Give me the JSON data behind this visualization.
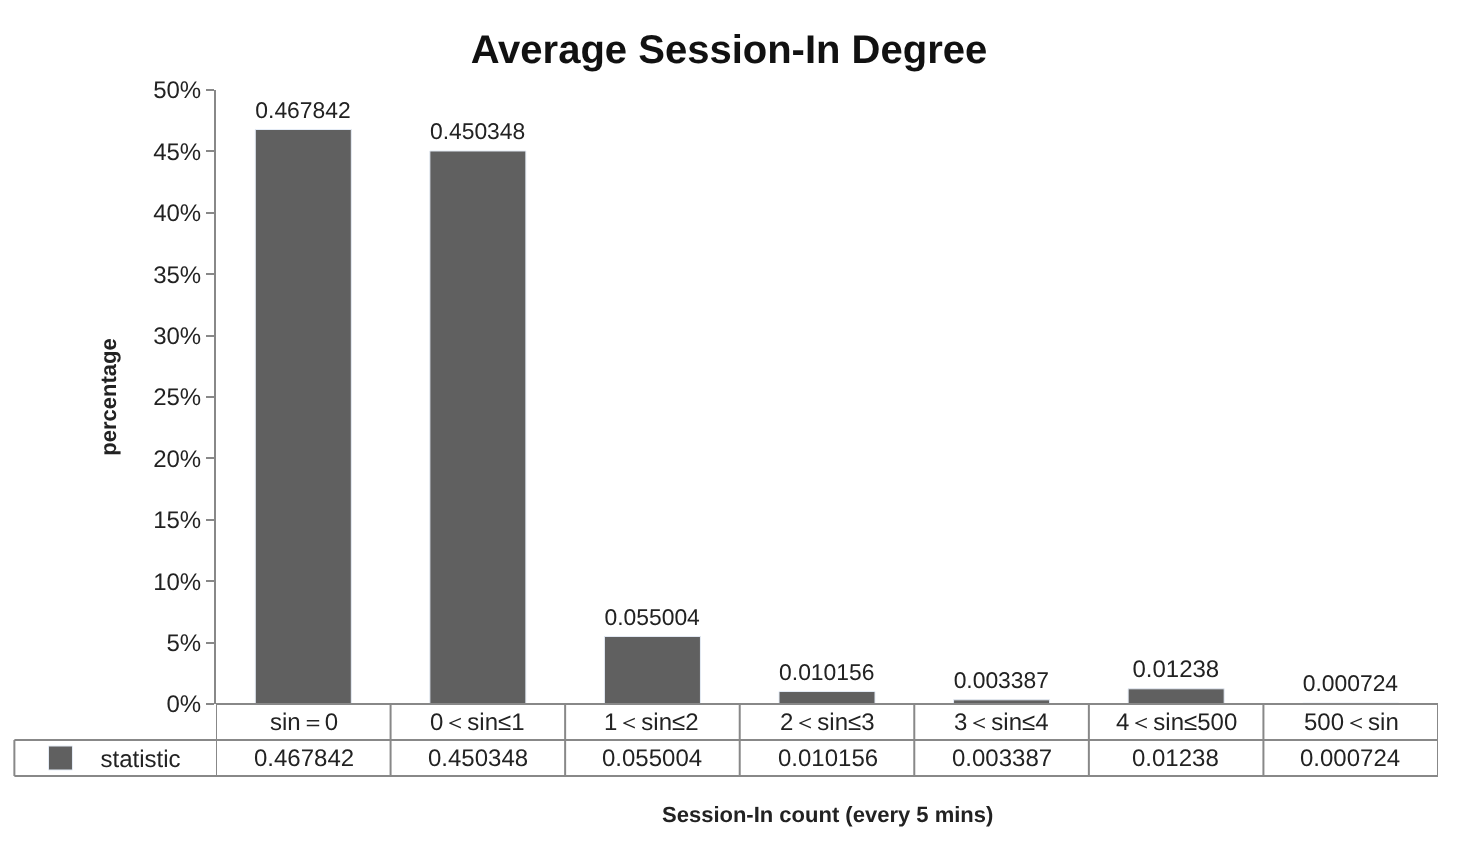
{
  "chart_data": {
    "type": "bar",
    "title": "Average Session-In Degree",
    "xlabel": "Session-In count (every 5 mins)",
    "ylabel": "percentage",
    "categories": [
      "sin＝0",
      "0＜sin≤1",
      "1＜sin≤2",
      "2＜sin≤3",
      "3＜sin≤4",
      "4＜sin≤500",
      "500＜sin"
    ],
    "series": [
      {
        "name": "statistic",
        "color": "#606060",
        "values": [
          0.467842,
          0.450348,
          0.055004,
          0.010156,
          0.003387,
          0.01238,
          0.000724
        ],
        "value_labels": [
          "0.467842",
          "0.450348",
          "0.055004",
          "0.010156",
          "0.003387",
          "0.01238",
          "0.000724"
        ]
      }
    ],
    "ylim": [
      0,
      0.5
    ],
    "yticks": [
      {
        "value": 0,
        "label": "0%"
      },
      {
        "value": 0.05,
        "label": "5%"
      },
      {
        "value": 0.1,
        "label": "10%"
      },
      {
        "value": 0.15,
        "label": "15%"
      },
      {
        "value": 0.2,
        "label": "20%"
      },
      {
        "value": 0.25,
        "label": "25%"
      },
      {
        "value": 0.3,
        "label": "30%"
      },
      {
        "value": 0.35,
        "label": "35%"
      },
      {
        "value": 0.4,
        "label": "40%"
      },
      {
        "value": 0.45,
        "label": "45%"
      },
      {
        "value": 0.5,
        "label": "50%"
      }
    ],
    "legend": "bottom left"
  }
}
